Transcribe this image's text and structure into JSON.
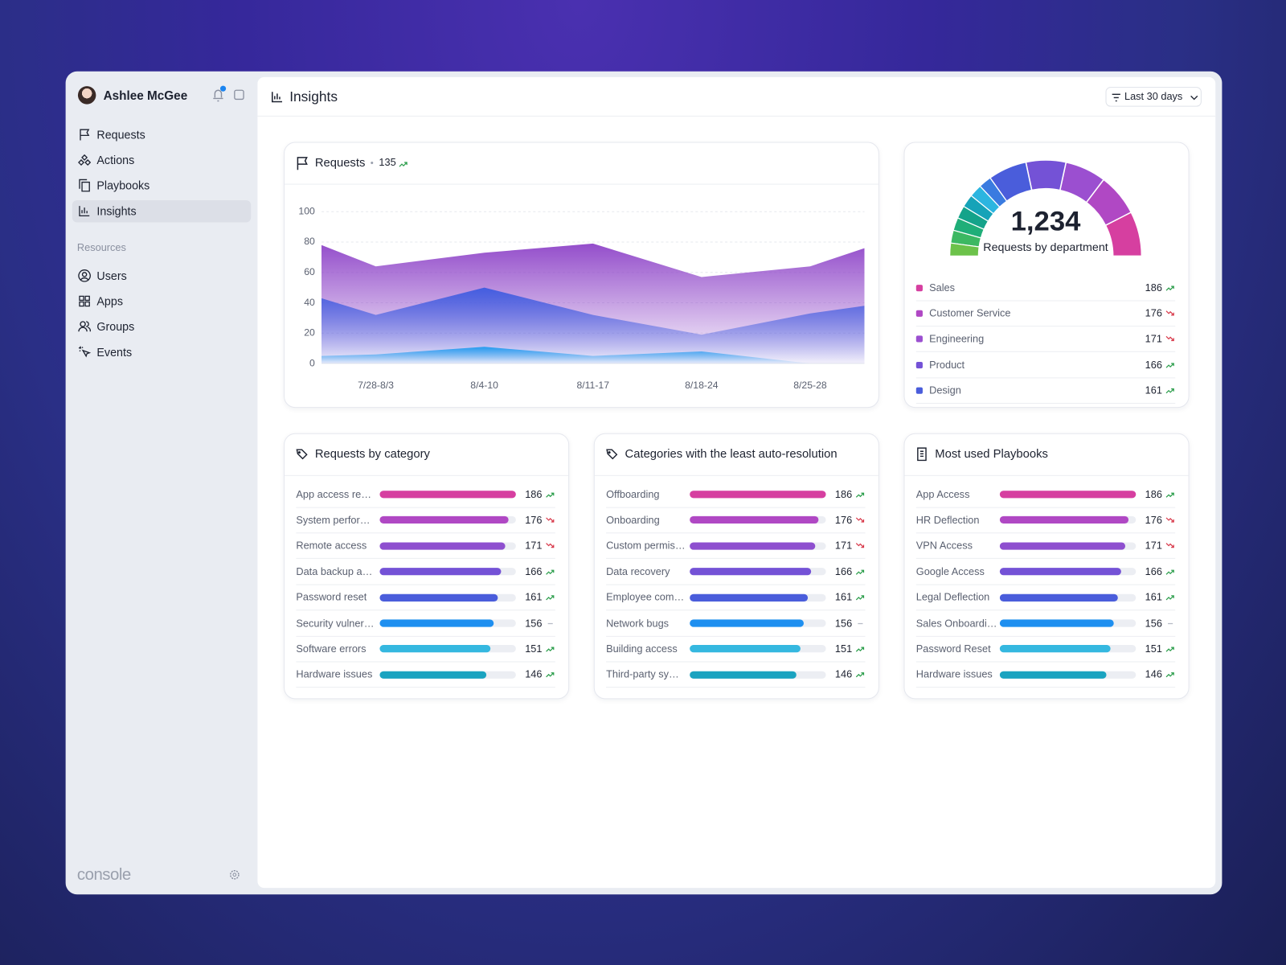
{
  "sidebar": {
    "user": "Ashlee McGee",
    "nav": [
      "Requests",
      "Actions",
      "Playbooks",
      "Insights"
    ],
    "active": 3,
    "section_title": "Resources",
    "resources": [
      "Users",
      "Apps",
      "Groups",
      "Events"
    ],
    "brand": "console"
  },
  "header": {
    "title": "Insights",
    "filter": "Last 30 days"
  },
  "requests_chart": {
    "type": "area",
    "title": "Requests",
    "total": 135,
    "trend": "up",
    "categories": [
      null,
      "7/28-8/3",
      "8/4-10",
      "8/11-17",
      "8/18-24",
      "8/25-28",
      null
    ],
    "ylim": [
      0,
      100
    ],
    "yticks": [
      0,
      20,
      40,
      60,
      80,
      100
    ],
    "grid": true,
    "series": [
      {
        "color": "#8e44c8",
        "values": [
          78,
          64,
          73,
          79,
          57,
          64,
          76
        ]
      },
      {
        "color": "#3d5be0",
        "values": [
          43,
          32,
          50,
          32,
          19,
          33,
          38
        ]
      },
      {
        "color": "#1e9bf0",
        "values": [
          5,
          6,
          11,
          5,
          8,
          0,
          0
        ]
      }
    ]
  },
  "department_chart": {
    "type": "gauge",
    "total": {
      "value": 1234,
      "label": "1,234"
    },
    "title": "Requests by department",
    "items": [
      {
        "name": "Sales",
        "value": 186,
        "trend": "up",
        "color": "#d63fa0"
      },
      {
        "name": "Customer Service",
        "value": 176,
        "trend": "down",
        "color": "#b048c4"
      },
      {
        "name": "Engineering",
        "value": 171,
        "trend": "down",
        "color": "#9b4fd0"
      },
      {
        "name": "Product",
        "value": 166,
        "trend": "up",
        "color": "#7452d6"
      },
      {
        "name": "Design",
        "value": 161,
        "trend": "up",
        "color": "#4a5ddb"
      }
    ]
  },
  "bar_colors": [
    "#d63fa0",
    "#b048c4",
    "#8e4fcf",
    "#7452d6",
    "#4a5ddb",
    "#1e8ff0",
    "#35b8e0",
    "#1aa3c0"
  ],
  "lists": [
    {
      "title": "Requests by category",
      "rows": [
        {
          "label": "App access re…",
          "value": 186,
          "trend": "up"
        },
        {
          "label": "System perfor…",
          "value": 176,
          "trend": "down"
        },
        {
          "label": "Remote access",
          "value": 171,
          "trend": "down"
        },
        {
          "label": "Data backup a…",
          "value": 166,
          "trend": "up"
        },
        {
          "label": "Password reset",
          "value": 161,
          "trend": "up"
        },
        {
          "label": "Security vulner…",
          "value": 156,
          "trend": "flat"
        },
        {
          "label": "Software errors",
          "value": 151,
          "trend": "up"
        },
        {
          "label": "Hardware issues",
          "value": 146,
          "trend": "up"
        }
      ]
    },
    {
      "title": "Categories with the least auto-resolution",
      "rows": [
        {
          "label": "Offboarding",
          "value": 186,
          "trend": "up"
        },
        {
          "label": "Onboarding",
          "value": 176,
          "trend": "down"
        },
        {
          "label": "Custom permis…",
          "value": 171,
          "trend": "down"
        },
        {
          "label": "Data recovery",
          "value": 166,
          "trend": "up"
        },
        {
          "label": "Employee com…",
          "value": 161,
          "trend": "up"
        },
        {
          "label": "Network bugs",
          "value": 156,
          "trend": "flat"
        },
        {
          "label": "Building access",
          "value": 151,
          "trend": "up"
        },
        {
          "label": "Third-party sy…",
          "value": 146,
          "trend": "up"
        }
      ]
    },
    {
      "title": "Most used Playbooks",
      "rows": [
        {
          "label": "App Access",
          "value": 186,
          "trend": "up"
        },
        {
          "label": "HR Deflection",
          "value": 176,
          "trend": "down"
        },
        {
          "label": "VPN Access",
          "value": 171,
          "trend": "down"
        },
        {
          "label": "Google Access",
          "value": 166,
          "trend": "up"
        },
        {
          "label": "Legal Deflection",
          "value": 161,
          "trend": "up"
        },
        {
          "label": "Sales Onboardi…",
          "value": 156,
          "trend": "flat"
        },
        {
          "label": "Password Reset",
          "value": 151,
          "trend": "up"
        },
        {
          "label": "Hardware issues",
          "value": 146,
          "trend": "up"
        }
      ]
    }
  ]
}
